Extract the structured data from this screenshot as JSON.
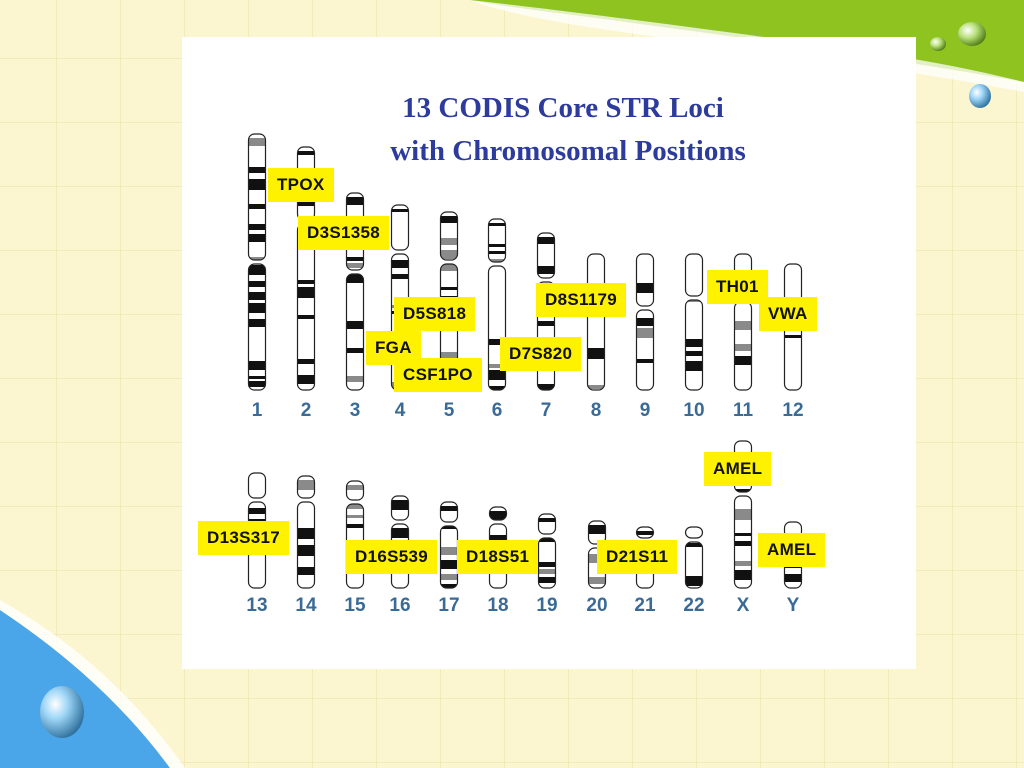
{
  "title": {
    "line1": "13 CODIS Core STR Loci",
    "line2": "with Chromosomal Positions"
  },
  "chromosomes": [
    "1",
    "2",
    "3",
    "4",
    "5",
    "6",
    "7",
    "8",
    "9",
    "10",
    "11",
    "12",
    "13",
    "14",
    "15",
    "16",
    "17",
    "18",
    "19",
    "20",
    "21",
    "22",
    "X",
    "Y"
  ],
  "loci": [
    {
      "id": "tpox",
      "label": "TPOX"
    },
    {
      "id": "d3s1358",
      "label": "D3S1358"
    },
    {
      "id": "d5s818",
      "label": "D5S818"
    },
    {
      "id": "fga",
      "label": "FGA"
    },
    {
      "id": "csf1po",
      "label": "CSF1PO"
    },
    {
      "id": "d7s820",
      "label": "D7S820"
    },
    {
      "id": "d8s1179",
      "label": "D8S1179"
    },
    {
      "id": "th01",
      "label": "TH01"
    },
    {
      "id": "vwa",
      "label": "VWA"
    },
    {
      "id": "amel-x",
      "label": "AMEL"
    },
    {
      "id": "d13s317",
      "label": "D13S317"
    },
    {
      "id": "d16s539",
      "label": "D16S539"
    },
    {
      "id": "d18s51",
      "label": "D18S51"
    },
    {
      "id": "d21s11",
      "label": "D21S11"
    },
    {
      "id": "amel-y",
      "label": "AMEL"
    }
  ],
  "colors": {
    "title": "#2d3c9c",
    "chromosome_number": "#3a6a96",
    "locus_label_bg": "#fff200",
    "background": "#fbf6cf",
    "accent_green": "#8fc31f",
    "accent_blue": "#4aa6e8"
  }
}
